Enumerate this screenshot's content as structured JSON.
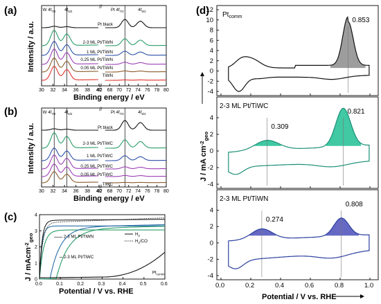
{
  "panels": {
    "a": "(a)",
    "b": "(b)",
    "c": "(c)",
    "d": "(d)"
  },
  "peak_labels": {
    "w4f72": "W 4f",
    "w4f72_sub": "7/2",
    "w4f52": "4f",
    "w4f52_sub": "5/2",
    "pt4f72": "Pt 4f",
    "pt4f72_sub": "7/2",
    "pt4f52": "4f",
    "pt4f52_sub": "5/2"
  },
  "colors": {
    "black": "#111111",
    "green": "#2a9d6a",
    "blue": "#2c4fa8",
    "purple": "#9b3fb5",
    "brown": "#8a5a2b",
    "red": "#e0322a",
    "gray_fill": "#8c8c8c",
    "teal_fill": "#1fbf93",
    "navy_fill": "#4a4fb8"
  },
  "chart_data": [
    {
      "id": "a",
      "type": "line",
      "xlabel": "Binding energy / eV",
      "ylabel": "Intensity / a.u.",
      "x_ticks_left": [
        "30",
        "32",
        "34",
        "36",
        "38",
        "40"
      ],
      "x_ticks_right": [
        "68",
        "70",
        "72",
        "74",
        "76",
        "78",
        "80"
      ],
      "x_break": "//",
      "series": [
        {
          "name": "Pt black",
          "color": "#111111"
        },
        {
          "name": "2-3 ML Pt/TiWN",
          "color": "#2a9d6a"
        },
        {
          "name": "1 ML Pt/TiWN",
          "color": "#2c4fa8"
        },
        {
          "name": "0.25 ML Pt/TiWN",
          "color": "#9b3fb5"
        },
        {
          "name": "0.05 ML Pt/TiWN",
          "color": "#8a5a2b"
        },
        {
          "name": "TiWN",
          "color": "#e0322a"
        }
      ]
    },
    {
      "id": "b",
      "type": "line",
      "xlabel": "Binding energy / eV",
      "ylabel": "Intensity / a.u.",
      "x_ticks_left": [
        "30",
        "32",
        "34",
        "36",
        "38",
        "40"
      ],
      "x_ticks_right": [
        "68",
        "70",
        "72",
        "74",
        "76",
        "78",
        "80"
      ],
      "x_break": "//",
      "series": [
        {
          "name": "Pt black",
          "color": "#111111"
        },
        {
          "name": "2-3 ML Pt/TiWC",
          "color": "#2a9d6a"
        },
        {
          "name": "1 ML Pt/TiWC",
          "color": "#2c4fa8"
        },
        {
          "name": "0.25 ML Pt/TiWC",
          "color": "#9b3fb5"
        },
        {
          "name": "0.05 ML Pt/TiWC",
          "color": "#9b3fb5"
        },
        {
          "name": "TiWC",
          "color": "#8a5a2b"
        }
      ]
    },
    {
      "id": "c",
      "type": "line",
      "xlabel": "Potential / V vs. RHE",
      "ylabel": "J / mAcm",
      "ylabel_sup": "-2",
      "ylabel_sub": "geo",
      "xlim": [
        0,
        0.6
      ],
      "ylim": [
        0,
        4
      ],
      "x_ticks": [
        "0.0",
        "0.1",
        "0.2",
        "0.3",
        "0.4",
        "0.5",
        "0.6"
      ],
      "y_ticks": [
        "0",
        "1",
        "2",
        "3",
        "4"
      ],
      "legend": [
        {
          "name": "H",
          "sub": "2",
          "style": "solid"
        },
        {
          "name": "H",
          "sub": "2",
          "tail": "/CO",
          "style": "dotted"
        }
      ],
      "series": [
        {
          "name": "2-3 ML Pt/TiWN",
          "color": "#2a6fa8"
        },
        {
          "name": "2-3 ML Pt/TiWC",
          "color": "#2a9d6a"
        },
        {
          "name": "Pt",
          "sub": "comm",
          "color": "#111111"
        }
      ]
    },
    {
      "id": "d",
      "type": "line",
      "xlabel": "Potential / V vs. RHE",
      "ylabel": "J / mA cm",
      "ylabel_sup": "-2",
      "ylabel_sub": "geo",
      "xlim": [
        0.0,
        1.0
      ],
      "x_ticks": [
        "0.0",
        "0.2",
        "0.4",
        "0.6",
        "0.8",
        "1.0"
      ],
      "subplots": [
        {
          "name": "Pt",
          "name_sub": "comm",
          "ylim": [
            -4,
            12
          ],
          "y_ticks": [
            "-4",
            "-2",
            "0",
            "2",
            "4",
            "6",
            "8",
            "10",
            "12"
          ],
          "peaks": [
            {
              "x": 0.853,
              "label": "0.853"
            }
          ]
        },
        {
          "name": "2-3 ML Pt/TiWC",
          "ylim": [
            -4,
            6
          ],
          "y_ticks": [
            "-4",
            "-2",
            "0",
            "2",
            "4"
          ],
          "peaks": [
            {
              "x": 0.309,
              "label": "0.309"
            },
            {
              "x": 0.821,
              "label": "0.821"
            }
          ]
        },
        {
          "name": "2-3 ML Pt/TiWN",
          "ylim": [
            -4,
            6
          ],
          "y_ticks": [
            "-4",
            "-2",
            "0",
            "2",
            "4"
          ],
          "peaks": [
            {
              "x": 0.274,
              "label": "0.274"
            },
            {
              "x": 0.808,
              "label": "0.808"
            }
          ]
        }
      ]
    }
  ]
}
